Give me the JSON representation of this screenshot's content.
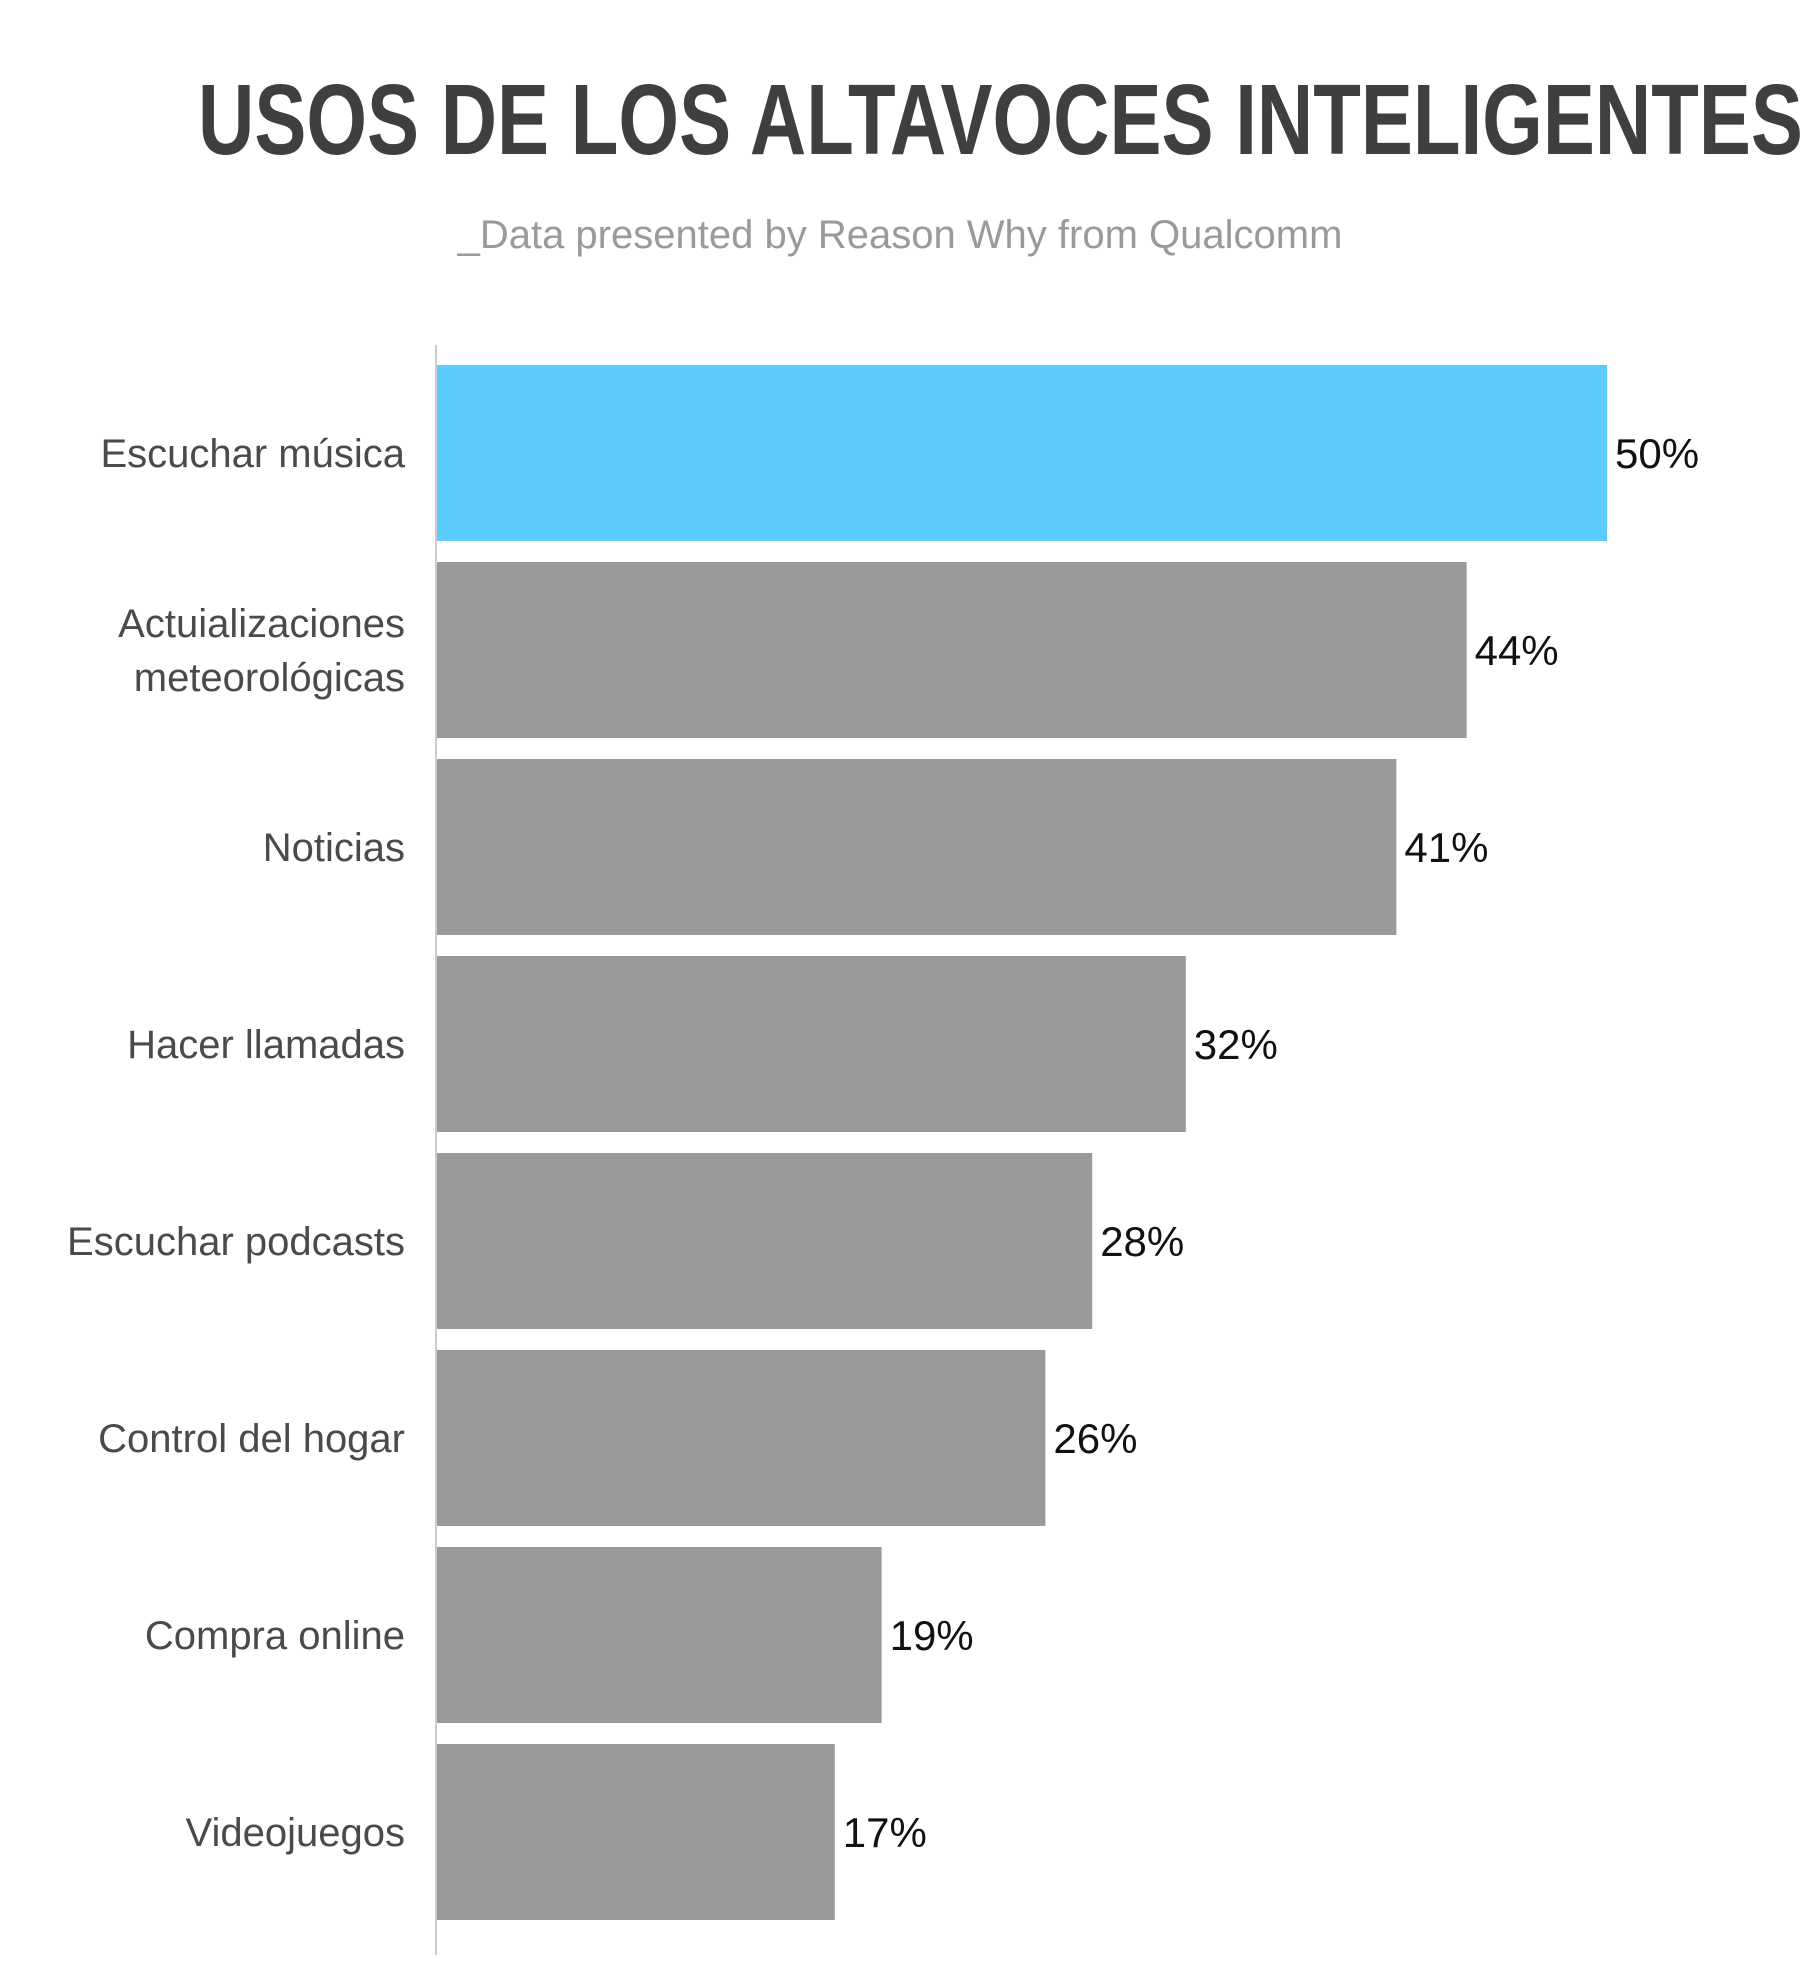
{
  "header": {
    "title": "USOS DE LOS ALTAVOCES INTELIGENTES",
    "subtitle": "_Data presented by Reason Why from Qualcomm"
  },
  "colors": {
    "highlight": "#5bcbfc",
    "bar": "#9a9a9a",
    "axis": "#cccccc"
  },
  "chart_data": {
    "type": "bar",
    "orientation": "horizontal",
    "title": "USOS DE LOS ALTAVOCES INTELIGENTES",
    "subtitle": "_Data presented by Reason Why from Qualcomm",
    "categories": [
      "Escuchar música",
      "Actuializaciones meteorológicas",
      "Noticias",
      "Hacer llamadas",
      "Escuchar podcasts",
      "Control del hogar",
      "Compra online",
      "Videojuegos"
    ],
    "category_lines": [
      [
        "Escuchar música"
      ],
      [
        "Actuializaciones",
        "meteorológicas"
      ],
      [
        "Noticias"
      ],
      [
        "Hacer llamadas"
      ],
      [
        "Escuchar podcasts"
      ],
      [
        "Control del hogar"
      ],
      [
        "Compra online"
      ],
      [
        "Videojuegos"
      ]
    ],
    "values": [
      50,
      44,
      41,
      32,
      28,
      26,
      19,
      17
    ],
    "value_labels": [
      "50%",
      "44%",
      "41%",
      "32%",
      "28%",
      "26%",
      "19%",
      "17%"
    ],
    "unit": "%",
    "highlight_index": 0,
    "xlim": [
      0,
      50
    ],
    "grid": false,
    "legend": "none"
  }
}
